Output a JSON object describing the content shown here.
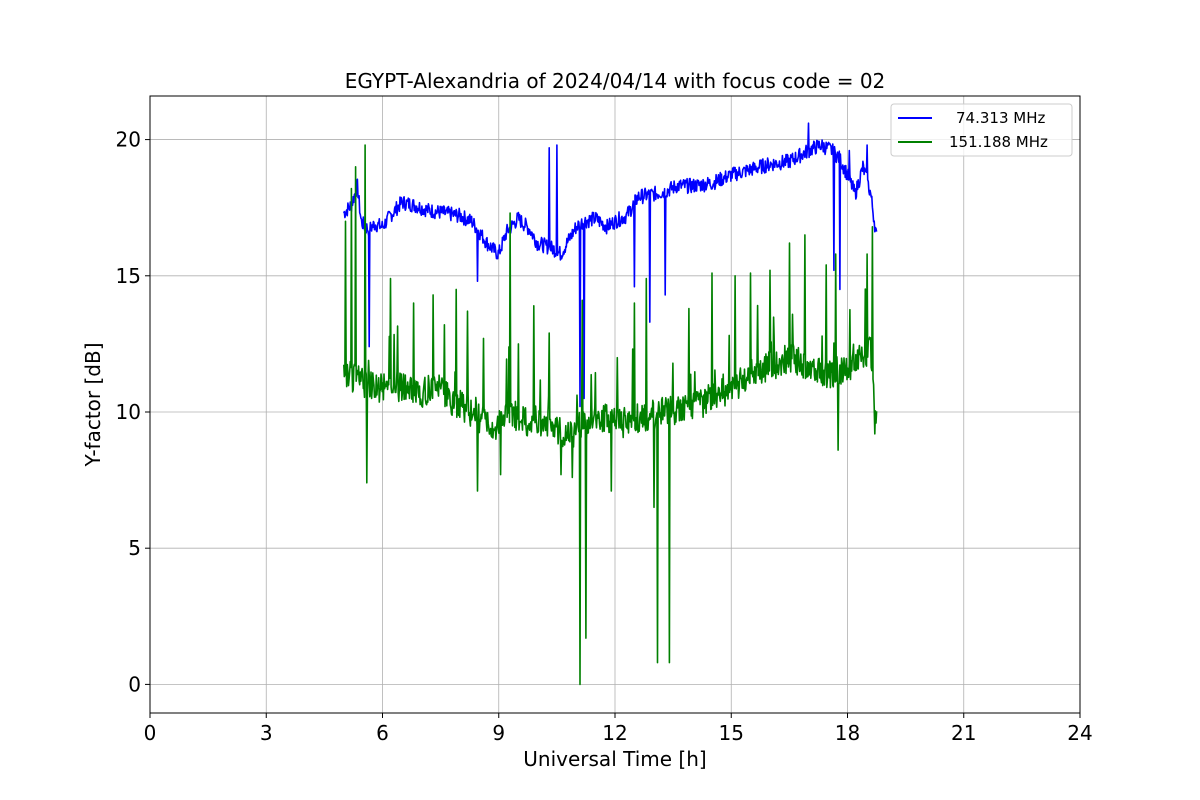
{
  "chart_data": {
    "type": "line",
    "title": "EGYPT-Alexandria of 2024/04/14 with focus code = 02",
    "xlabel": "Universal Time [h]",
    "ylabel": "Y-factor [dB]",
    "xlim": [
      0,
      24
    ],
    "ylim": [
      -1.05,
      21.6
    ],
    "xticks": [
      0,
      3,
      6,
      9,
      12,
      15,
      18,
      21,
      24
    ],
    "yticks": [
      0,
      5,
      10,
      15,
      20
    ],
    "grid": true,
    "legend_position": "top-right",
    "series": [
      {
        "name": "74.313 MHz",
        "color": "#0000ff",
        "x": [
          5.0,
          5.2,
          5.35,
          5.45,
          5.55,
          5.65,
          5.8,
          6.0,
          6.2,
          6.5,
          6.8,
          7.2,
          7.6,
          8.0,
          8.3,
          8.5,
          8.7,
          8.9,
          9.0,
          9.2,
          9.5,
          9.8,
          10.0,
          10.2,
          10.4,
          10.6,
          10.8,
          11.0,
          11.1,
          11.2,
          11.5,
          11.8,
          12.0,
          12.3,
          12.6,
          13.0,
          13.3,
          13.6,
          14.0,
          14.5,
          15.0,
          15.5,
          16.0,
          16.5,
          17.0,
          17.3,
          17.6,
          17.8,
          18.0,
          18.2,
          18.4,
          18.6,
          18.75
        ],
        "y": [
          17.3,
          17.6,
          18.3,
          17.0,
          16.8,
          16.7,
          16.9,
          16.8,
          17.2,
          17.7,
          17.6,
          17.4,
          17.3,
          17.2,
          17.0,
          16.6,
          16.2,
          15.9,
          15.8,
          16.6,
          17.1,
          16.7,
          16.2,
          16.1,
          16.0,
          15.8,
          16.3,
          16.8,
          16.9,
          17.0,
          17.1,
          16.8,
          17.0,
          17.2,
          17.9,
          18.0,
          18.1,
          18.3,
          18.3,
          18.4,
          18.7,
          18.9,
          19.1,
          19.2,
          19.6,
          19.8,
          19.6,
          19.3,
          18.7,
          18.0,
          19.0,
          18.0,
          16.4
        ],
        "spikes": [
          {
            "x": 5.65,
            "y": 12.4
          },
          {
            "x": 8.45,
            "y": 14.8
          },
          {
            "x": 10.3,
            "y": 19.7
          },
          {
            "x": 10.5,
            "y": 19.8
          },
          {
            "x": 11.1,
            "y": 10.2
          },
          {
            "x": 11.2,
            "y": 10.5
          },
          {
            "x": 12.5,
            "y": 14.6
          },
          {
            "x": 12.9,
            "y": 13.3
          },
          {
            "x": 13.3,
            "y": 14.3
          },
          {
            "x": 17.0,
            "y": 20.6
          },
          {
            "x": 17.5,
            "y": 19.8
          },
          {
            "x": 17.65,
            "y": 15.2
          },
          {
            "x": 17.8,
            "y": 14.5
          },
          {
            "x": 18.05,
            "y": 19.6
          },
          {
            "x": 18.5,
            "y": 19.8
          }
        ]
      },
      {
        "name": "151.188 MHz",
        "color": "#008000",
        "x": [
          5.0,
          5.3,
          5.6,
          5.9,
          6.2,
          6.6,
          7.0,
          7.4,
          7.8,
          8.1,
          8.4,
          8.7,
          8.9,
          9.1,
          9.4,
          9.7,
          10.0,
          10.3,
          10.6,
          10.9,
          11.1,
          11.3,
          11.6,
          11.9,
          12.2,
          12.6,
          13.0,
          13.4,
          13.8,
          14.2,
          14.6,
          15.0,
          15.4,
          15.8,
          16.2,
          16.6,
          17.0,
          17.4,
          17.8,
          18.1,
          18.4,
          18.6,
          18.75
        ],
        "y": [
          11.5,
          11.2,
          11.0,
          10.9,
          11.1,
          10.8,
          10.7,
          10.9,
          10.4,
          10.2,
          9.8,
          9.6,
          9.3,
          9.7,
          9.9,
          9.6,
          9.7,
          9.5,
          9.3,
          9.2,
          9.6,
          9.5,
          9.7,
          9.8,
          9.6,
          9.8,
          9.9,
          10.1,
          10.0,
          10.3,
          10.6,
          10.8,
          11.3,
          11.6,
          11.8,
          12.0,
          11.6,
          11.4,
          11.5,
          11.6,
          12.1,
          12.3,
          9.6
        ],
        "spikes": [
          {
            "x": 5.05,
            "y": 17.0
          },
          {
            "x": 5.2,
            "y": 18.2
          },
          {
            "x": 5.3,
            "y": 19.0
          },
          {
            "x": 5.55,
            "y": 19.8
          },
          {
            "x": 5.6,
            "y": 7.4
          },
          {
            "x": 6.2,
            "y": 14.9
          },
          {
            "x": 6.8,
            "y": 14.0
          },
          {
            "x": 7.3,
            "y": 14.3
          },
          {
            "x": 7.6,
            "y": 13.2
          },
          {
            "x": 7.9,
            "y": 14.5
          },
          {
            "x": 8.2,
            "y": 13.7
          },
          {
            "x": 8.45,
            "y": 7.1
          },
          {
            "x": 8.6,
            "y": 12.7
          },
          {
            "x": 9.05,
            "y": 7.7
          },
          {
            "x": 9.3,
            "y": 17.3
          },
          {
            "x": 9.5,
            "y": 12.5
          },
          {
            "x": 9.9,
            "y": 13.9
          },
          {
            "x": 10.3,
            "y": 12.9
          },
          {
            "x": 10.6,
            "y": 7.7
          },
          {
            "x": 10.9,
            "y": 7.6
          },
          {
            "x": 11.1,
            "y": 0.0
          },
          {
            "x": 11.15,
            "y": 14.1
          },
          {
            "x": 11.25,
            "y": 1.7
          },
          {
            "x": 11.9,
            "y": 7.1
          },
          {
            "x": 12.5,
            "y": 14.0
          },
          {
            "x": 12.8,
            "y": 14.9
          },
          {
            "x": 13.0,
            "y": 6.5
          },
          {
            "x": 13.1,
            "y": 0.8
          },
          {
            "x": 13.4,
            "y": 0.8
          },
          {
            "x": 13.9,
            "y": 13.8
          },
          {
            "x": 14.5,
            "y": 15.1
          },
          {
            "x": 15.1,
            "y": 15.0
          },
          {
            "x": 15.5,
            "y": 15.1
          },
          {
            "x": 16.0,
            "y": 15.2
          },
          {
            "x": 16.5,
            "y": 16.2
          },
          {
            "x": 16.9,
            "y": 16.5
          },
          {
            "x": 17.45,
            "y": 15.4
          },
          {
            "x": 17.7,
            "y": 15.8
          },
          {
            "x": 17.75,
            "y": 8.6
          },
          {
            "x": 18.5,
            "y": 15.8
          },
          {
            "x": 18.65,
            "y": 16.8
          },
          {
            "x": 18.7,
            "y": 9.2
          }
        ]
      }
    ]
  }
}
